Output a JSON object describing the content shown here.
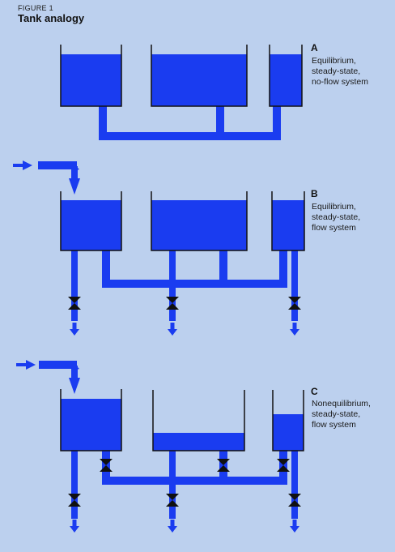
{
  "figure": {
    "label": "FIGURE 1",
    "title": "Tank analogy"
  },
  "panels": [
    {
      "letter": "A",
      "description": "Equilibrium,\nsteady-state,\nno-flow system"
    },
    {
      "letter": "B",
      "description": "Equilibrium,\nsteady-state,\nflow system"
    },
    {
      "letter": "C",
      "description": "Nonequilibrium,\nsteady-state,\nflow system"
    }
  ],
  "colors": {
    "background": "#bcd0ee",
    "water": "#1a3cf0",
    "tank_outline": "#111111",
    "valve": "#101010"
  }
}
